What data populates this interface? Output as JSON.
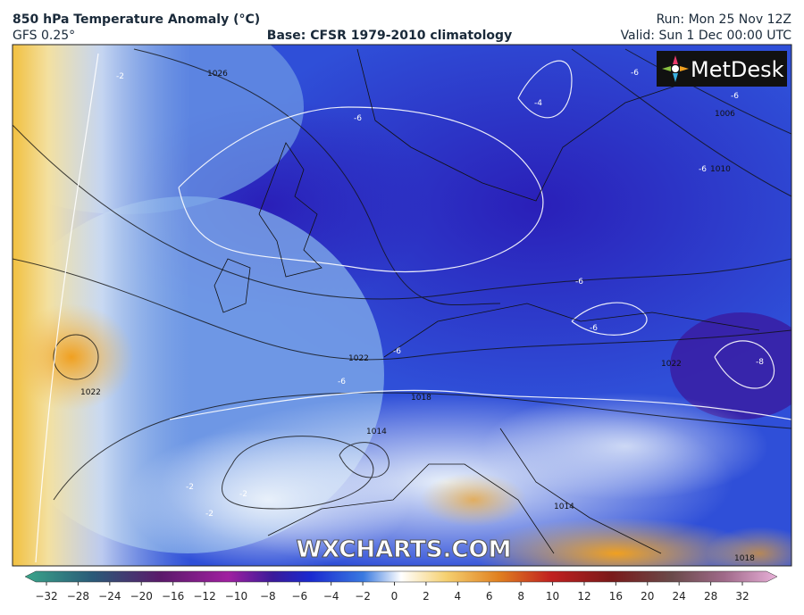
{
  "header": {
    "title": "850 hPa Temperature Anomaly (°C)",
    "model": "GFS 0.25°",
    "base": "Base: CFSR 1979-2010 climatology",
    "run": "Run: Mon 25 Nov 12Z",
    "valid": "Valid: Sun 1 Dec 00:00 UTC"
  },
  "map": {
    "logo": "MetDesk",
    "watermark": "WXCHARTS.COM",
    "isobar_labels": [
      "1026",
      "1022",
      "1022",
      "1018",
      "1014",
      "1014",
      "1010",
      "1006",
      "1022",
      "1018"
    ],
    "anomaly_labels": [
      "-2",
      "-6",
      "-6",
      "-6",
      "-6",
      "-6",
      "-6",
      "-8",
      "-4",
      "-2",
      "-2",
      "-2",
      "-6",
      "-6"
    ]
  },
  "colorbar": {
    "ticks": [
      "−32",
      "−28",
      "−24",
      "−20",
      "−16",
      "−12",
      "−10",
      "−8",
      "−6",
      "−4",
      "−2",
      "0",
      "2",
      "4",
      "6",
      "8",
      "10",
      "12",
      "16",
      "20",
      "24",
      "28",
      "32"
    ]
  }
}
